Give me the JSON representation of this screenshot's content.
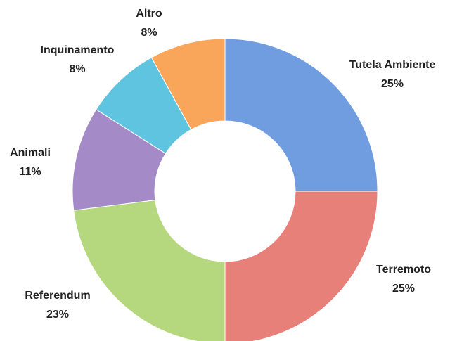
{
  "chart_data": {
    "type": "donut",
    "categories": [
      "Tutela Ambiente",
      "Terremoto",
      "Referendum",
      "Animali",
      "Inquinamento",
      "Altro"
    ],
    "values": [
      25,
      25,
      23,
      11,
      8,
      8
    ],
    "value_labels": [
      "25%",
      "25%",
      "23%",
      "11%",
      "8%",
      "8%"
    ],
    "colors": [
      "#6f9de0",
      "#e8807a",
      "#b5d77e",
      "#a48ac6",
      "#5ec4e0",
      "#f9a65a"
    ]
  }
}
